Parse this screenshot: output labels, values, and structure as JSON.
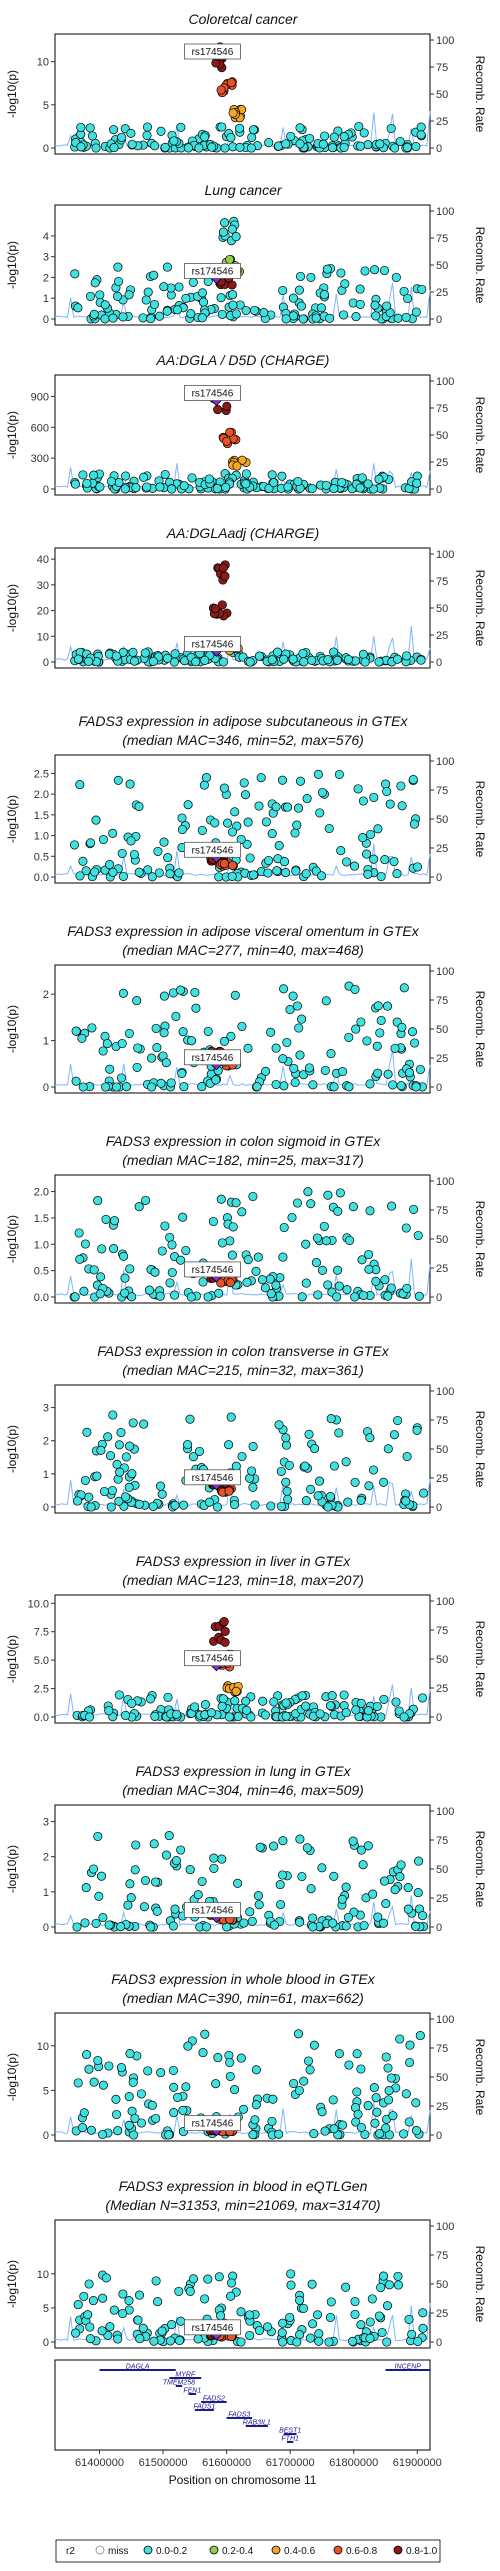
{
  "chart_data": {
    "type": "scatter",
    "common": {
      "lead_snp": "rs174546",
      "y1label": "-log10(p)",
      "y2label": "Recomb. Rate",
      "y2ticks": [
        "0",
        "25",
        "50",
        "75",
        "100"
      ],
      "xticks": [
        "61400000",
        "61500000",
        "61600000",
        "61700000",
        "61800000",
        "61900000"
      ],
      "xlim": [
        61330000,
        61920000
      ],
      "lead_pos": 61584000,
      "xlabel": "Position on chromosome 11"
    },
    "panels": [
      {
        "title": [
          "Coloretcal cancer"
        ],
        "ymax": 12.5,
        "yticks": [
          0,
          5,
          10
        ],
        "clusters": [
          {
            "x": 61590000,
            "y": 10.6,
            "r2": "0.8-1.0"
          },
          {
            "x": 61600000,
            "y": 7,
            "r2": "0.6-0.8"
          },
          {
            "x": 61615000,
            "y": 4,
            "r2": "0.4-0.6"
          }
        ],
        "lead_y": 10.8,
        "bg_peak": 2.5
      },
      {
        "title": [
          "Lung cancer"
        ],
        "ymax": 5.2,
        "yticks": [
          0,
          1,
          2,
          3,
          4
        ],
        "clusters": [
          {
            "x": 61605000,
            "y": 4.2,
            "r2": "0.0-0.2"
          },
          {
            "x": 61610000,
            "y": 2.6,
            "r2": "0.2-0.4"
          },
          {
            "x": 61598000,
            "y": 1.8,
            "r2": "0.8-1.0"
          }
        ],
        "lead_y": 2.0,
        "bg_peak": 2.5
      },
      {
        "title": [
          "AA:DGLA / D5D (CHARGE)"
        ],
        "ymax": 1050,
        "yticks": [
          0,
          300,
          600,
          900
        ],
        "clusters": [
          {
            "x": 61590000,
            "y": 870,
            "r2": "0.8-1.0"
          },
          {
            "x": 61605000,
            "y": 500,
            "r2": "0.6-0.8"
          },
          {
            "x": 61620000,
            "y": 250,
            "r2": "0.4-0.6"
          }
        ],
        "lead_y": 870,
        "bg_peak": 150
      },
      {
        "title": [
          "AA:DGLAadj (CHARGE)"
        ],
        "ymax": 42,
        "yticks": [
          0,
          10,
          20,
          30,
          40
        ],
        "clusters": [
          {
            "x": 61592000,
            "y": 34,
            "r2": "0.8-1.0"
          },
          {
            "x": 61590000,
            "y": 20,
            "r2": "0.8-1.0"
          },
          {
            "x": 61610000,
            "y": 5,
            "r2": "0.4-0.6"
          }
        ],
        "lead_y": 4.5,
        "bg_peak": 4
      },
      {
        "title": [
          "FADS3 expression in adipose subcutaneous in GTEx",
          "(median MAC=346, min=52, max=576)"
        ],
        "ymax": 2.8,
        "yticks": [
          0,
          0.5,
          1,
          1.5,
          2,
          2.5
        ],
        "ytickfmt": 1,
        "clusters": [
          {
            "x": 61585000,
            "y": 0.4,
            "r2": "0.8-1.0"
          },
          {
            "x": 61600000,
            "y": 0.3,
            "r2": "0.6-0.8"
          }
        ],
        "lead_y": 0.5,
        "bg_peak": 2.5
      },
      {
        "title": [
          "FADS3 expression in adipose visceral omentum in GTEx",
          "(median MAC=277, min=40, max=468)"
        ],
        "ymax": 2.5,
        "yticks": [
          0,
          1,
          2
        ],
        "clusters": [
          {
            "x": 61585000,
            "y": 0.7,
            "r2": "0.8-1.0"
          },
          {
            "x": 61600000,
            "y": 0.5,
            "r2": "0.6-0.8"
          }
        ],
        "lead_y": 0.5,
        "bg_peak": 2.2
      },
      {
        "title": [
          "FADS3 expression in colon sigmoid in GTEx",
          "(median MAC=182, min=25, max=317)"
        ],
        "ymax": 2.2,
        "yticks": [
          0,
          0.5,
          1,
          1.5,
          2
        ],
        "ytickfmt": 1,
        "clusters": [
          {
            "x": 61585000,
            "y": 0.4,
            "r2": "0.8-1.0"
          },
          {
            "x": 61600000,
            "y": 0.3,
            "r2": "0.6-0.8"
          }
        ],
        "lead_y": 0.4,
        "bg_peak": 2.0
      },
      {
        "title": [
          "FADS3 expression in colon transverse in GTEx",
          "(median MAC=215, min=32, max=361)"
        ],
        "ymax": 3.5,
        "yticks": [
          0,
          1,
          2,
          3
        ],
        "clusters": [
          {
            "x": 61585000,
            "y": 0.7,
            "r2": "0.8-1.0"
          },
          {
            "x": 61600000,
            "y": 0.5,
            "r2": "0.6-0.8"
          }
        ],
        "lead_y": 0.7,
        "bg_peak": 2.8
      },
      {
        "title": [
          "FADS3 expression in liver in GTEx",
          "(median MAC=123, min=18, max=207)"
        ],
        "ymax": 10.2,
        "yticks": [
          0,
          2.5,
          5,
          7.5,
          10
        ],
        "ytickfmt": 1,
        "clusters": [
          {
            "x": 61590000,
            "y": 7.5,
            "r2": "0.8-1.0"
          },
          {
            "x": 61598000,
            "y": 5.0,
            "r2": "0.6-0.8"
          },
          {
            "x": 61610000,
            "y": 2.5,
            "r2": "0.4-0.6"
          }
        ],
        "lead_y": 4.6,
        "bg_peak": 2.0
      },
      {
        "title": [
          "FADS3 expression in lung in GTEx",
          "(median MAC=304, min=46, max=509)"
        ],
        "ymax": 3.3,
        "yticks": [
          0,
          1,
          2,
          3
        ],
        "clusters": [
          {
            "x": 61585000,
            "y": 0.3,
            "r2": "0.8-1.0"
          },
          {
            "x": 61600000,
            "y": 0.2,
            "r2": "0.6-0.8"
          }
        ],
        "lead_y": 0.3,
        "bg_peak": 2.6
      },
      {
        "title": [
          "FADS3 expression in whole blood in GTEx",
          "(median MAC=390, min=61, max=662)"
        ],
        "ymax": 13,
        "yticks": [
          0,
          5,
          10
        ],
        "clusters": [
          {
            "x": 61585000,
            "y": 0.5,
            "r2": "0.8-1.0"
          },
          {
            "x": 61600000,
            "y": 0.4,
            "r2": "0.6-0.8"
          }
        ],
        "lead_y": 0.6,
        "bg_peak": 11.5
      },
      {
        "title": [
          "FADS3 expression in blood in eQTLGen",
          "(Median N=31353, min=21069, max=31470)"
        ],
        "ymax": 17,
        "yticks": [
          0,
          5,
          10
        ],
        "clusters": [
          {
            "x": 61585000,
            "y": 1.0,
            "r2": "0.8-1.0"
          },
          {
            "x": 61600000,
            "y": 0.8,
            "r2": "0.6-0.8"
          }
        ],
        "lead_y": 1.2,
        "bg_peak": 10
      }
    ],
    "genes": [
      {
        "name": "DAGLA",
        "start": 61400000,
        "end": 61520000,
        "lane": 0
      },
      {
        "name": "INCENP",
        "start": 61850000,
        "end": 61920000,
        "lane": 0
      },
      {
        "name": "MYRF",
        "start": 61510000,
        "end": 61560000,
        "lane": 1
      },
      {
        "name": "TMEM258",
        "start": 61520000,
        "end": 61530000,
        "lane": 2
      },
      {
        "name": "FEN1",
        "start": 61540000,
        "end": 61552000,
        "lane": 3
      },
      {
        "name": "FADS2",
        "start": 61560000,
        "end": 61600000,
        "lane": 4
      },
      {
        "name": "FADS1",
        "start": 61550000,
        "end": 61580000,
        "lane": 5
      },
      {
        "name": "FADS3",
        "start": 61600000,
        "end": 61640000,
        "lane": 6
      },
      {
        "name": "RAB3IL1",
        "start": 61630000,
        "end": 61665000,
        "lane": 7
      },
      {
        "name": "BEST1",
        "start": 61690000,
        "end": 61710000,
        "lane": 8
      },
      {
        "name": "FTH1",
        "start": 61695000,
        "end": 61705000,
        "lane": 9
      }
    ],
    "legend": {
      "title": "r2",
      "items": [
        {
          "label": "miss",
          "color": "#ffffff",
          "stroke": "#888888"
        },
        {
          "label": "0.0-0.2",
          "color": "#3ee0e0"
        },
        {
          "label": "0.2-0.4",
          "color": "#8fd14f"
        },
        {
          "label": "0.4-0.6",
          "color": "#f5a623"
        },
        {
          "label": "0.6-0.8",
          "color": "#e8542a"
        },
        {
          "label": "0.8-1.0",
          "color": "#8b1a1a"
        }
      ],
      "lead_color": "#8a2be2",
      "recomb_color": "#7eb6ff"
    }
  }
}
